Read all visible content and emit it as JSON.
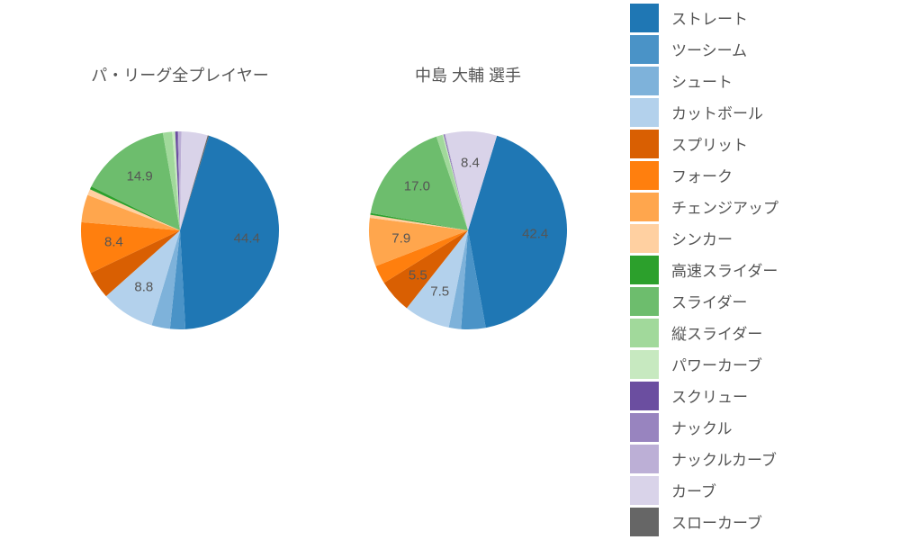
{
  "background_color": "#ffffff",
  "text_color": "#555555",
  "title_fontsize": 18,
  "label_fontsize": 15,
  "legend_fontsize": 17,
  "pie_start_angle": 73,
  "pie_direction": "clockwise",
  "min_label_value": 5.0,
  "legend": [
    {
      "label": "ストレート",
      "color": "#1f77b4"
    },
    {
      "label": "ツーシーム",
      "color": "#4a93c7"
    },
    {
      "label": "シュート",
      "color": "#7eb2da"
    },
    {
      "label": "カットボール",
      "color": "#b3d1ec"
    },
    {
      "label": "スプリット",
      "color": "#d95f02"
    },
    {
      "label": "フォーク",
      "color": "#ff7f0e"
    },
    {
      "label": "チェンジアップ",
      "color": "#ffa64d"
    },
    {
      "label": "シンカー",
      "color": "#ffd0a1"
    },
    {
      "label": "高速スライダー",
      "color": "#2ca02c"
    },
    {
      "label": "スライダー",
      "color": "#6dbd6d"
    },
    {
      "label": "縦スライダー",
      "color": "#a1d99b"
    },
    {
      "label": "パワーカーブ",
      "color": "#c7e9c0"
    },
    {
      "label": "スクリュー",
      "color": "#6b4ea0"
    },
    {
      "label": "ナックル",
      "color": "#9884bf"
    },
    {
      "label": "ナックルカーブ",
      "color": "#bcafd6"
    },
    {
      "label": "カーブ",
      "color": "#d9d3e9"
    },
    {
      "label": "スローカーブ",
      "color": "#666666"
    }
  ],
  "charts": [
    {
      "title": "パ・リーグ全プレイヤー",
      "type": "pie",
      "slices": [
        {
          "label": "ストレート",
          "value": 44.4,
          "color": "#1f77b4"
        },
        {
          "label": "ツーシーム",
          "value": 2.5,
          "color": "#4a93c7"
        },
        {
          "label": "シュート",
          "value": 3.0,
          "color": "#7eb2da"
        },
        {
          "label": "カットボール",
          "value": 8.8,
          "color": "#b3d1ec"
        },
        {
          "label": "スプリット",
          "value": 4.5,
          "color": "#d95f02"
        },
        {
          "label": "フォーク",
          "value": 8.4,
          "color": "#ff7f0e"
        },
        {
          "label": "チェンジアップ",
          "value": 4.5,
          "color": "#ffa64d"
        },
        {
          "label": "シンカー",
          "value": 1.0,
          "color": "#ffd0a1"
        },
        {
          "label": "高速スライダー",
          "value": 0.5,
          "color": "#2ca02c"
        },
        {
          "label": "スライダー",
          "value": 14.9,
          "color": "#6dbd6d"
        },
        {
          "label": "縦スライダー",
          "value": 1.5,
          "color": "#a1d99b"
        },
        {
          "label": "パワーカーブ",
          "value": 0.5,
          "color": "#c7e9c0"
        },
        {
          "label": "スクリュー",
          "value": 0.4,
          "color": "#6b4ea0"
        },
        {
          "label": "ナックル",
          "value": 0.1,
          "color": "#9884bf"
        },
        {
          "label": "ナックルカーブ",
          "value": 0.5,
          "color": "#bcafd6"
        },
        {
          "label": "カーブ",
          "value": 4.3,
          "color": "#d9d3e9"
        },
        {
          "label": "スローカーブ",
          "value": 0.2,
          "color": "#666666"
        }
      ]
    },
    {
      "title": "中島 大輔  選手",
      "type": "pie",
      "slices": [
        {
          "label": "ストレート",
          "value": 42.4,
          "color": "#1f77b4"
        },
        {
          "label": "ツーシーム",
          "value": 4.0,
          "color": "#4a93c7"
        },
        {
          "label": "シュート",
          "value": 2.0,
          "color": "#7eb2da"
        },
        {
          "label": "カットボール",
          "value": 7.5,
          "color": "#b3d1ec"
        },
        {
          "label": "スプリット",
          "value": 5.5,
          "color": "#d95f02"
        },
        {
          "label": "フォーク",
          "value": 3.0,
          "color": "#ff7f0e"
        },
        {
          "label": "チェンジアップ",
          "value": 7.9,
          "color": "#ffa64d"
        },
        {
          "label": "シンカー",
          "value": 0.5,
          "color": "#ffd0a1"
        },
        {
          "label": "高速スライダー",
          "value": 0.3,
          "color": "#2ca02c"
        },
        {
          "label": "スライダー",
          "value": 17.0,
          "color": "#6dbd6d"
        },
        {
          "label": "縦スライダー",
          "value": 1.0,
          "color": "#a1d99b"
        },
        {
          "label": "パワーカーブ",
          "value": 0.2,
          "color": "#c7e9c0"
        },
        {
          "label": "スクリュー",
          "value": 0.1,
          "color": "#6b4ea0"
        },
        {
          "label": "ナックル",
          "value": 0.1,
          "color": "#9884bf"
        },
        {
          "label": "ナックルカーブ",
          "value": 0.1,
          "color": "#bcafd6"
        },
        {
          "label": "カーブ",
          "value": 8.4,
          "color": "#d9d3e9"
        },
        {
          "label": "スローカーブ",
          "value": 0.0,
          "color": "#666666"
        }
      ]
    }
  ]
}
